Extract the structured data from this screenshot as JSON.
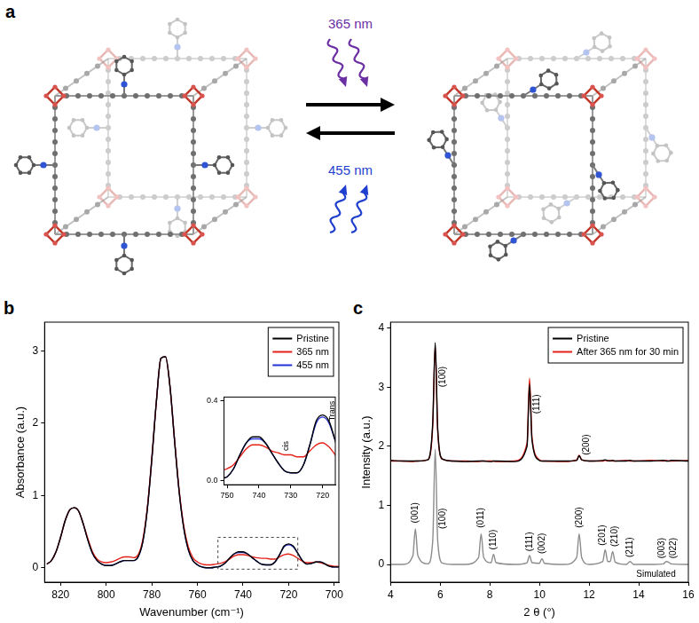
{
  "diagram": {
    "label": "a",
    "arrows": [
      {
        "label": "365 nm",
        "direction": "right"
      },
      {
        "label": "455 nm",
        "direction": "left"
      }
    ]
  },
  "chart_data": [
    {
      "label": "b",
      "type": "line",
      "x_label": "Wavenumber (cm⁻¹)",
      "y_label": "Absorbance (a.u.)",
      "x": [
        826,
        824,
        822,
        820,
        818,
        816,
        814,
        812,
        810,
        808,
        806,
        804,
        802,
        800,
        798,
        796,
        794,
        792,
        790,
        788,
        786,
        784,
        782,
        780,
        778,
        776,
        774,
        772,
        770,
        768,
        766,
        764,
        762,
        760,
        758,
        756,
        754,
        752,
        750,
        748,
        746,
        744,
        742,
        740,
        738,
        736,
        734,
        732,
        730,
        728,
        726,
        724,
        722,
        720,
        718,
        716,
        714,
        712,
        710,
        708,
        706,
        704,
        702,
        700,
        698
      ],
      "series": [
        {
          "name": "Pristine",
          "color": "#000000",
          "values": [
            0.05,
            0.1,
            0.22,
            0.42,
            0.65,
            0.8,
            0.83,
            0.78,
            0.6,
            0.38,
            0.2,
            0.1,
            0.05,
            0.03,
            0.03,
            0.05,
            0.08,
            0.1,
            0.1,
            0.1,
            0.15,
            0.35,
            0.8,
            1.5,
            2.3,
            2.9,
            2.92,
            2.5,
            1.75,
            1.05,
            0.55,
            0.25,
            0.1,
            0.04,
            0.01,
            0.0,
            0.0,
            0.01,
            0.02,
            0.06,
            0.13,
            0.19,
            0.22,
            0.22,
            0.19,
            0.14,
            0.09,
            0.05,
            0.04,
            0.04,
            0.08,
            0.18,
            0.3,
            0.33,
            0.3,
            0.2,
            0.1,
            0.05,
            0.06,
            0.08,
            0.08,
            0.05,
            0.02,
            0.01,
            0.01
          ]
        },
        {
          "name": "365 nm",
          "color": "#e32119",
          "values": [
            0.05,
            0.1,
            0.22,
            0.42,
            0.65,
            0.8,
            0.83,
            0.78,
            0.6,
            0.4,
            0.22,
            0.12,
            0.08,
            0.07,
            0.08,
            0.1,
            0.13,
            0.15,
            0.15,
            0.14,
            0.18,
            0.38,
            0.82,
            1.52,
            2.3,
            2.9,
            2.92,
            2.5,
            1.76,
            1.07,
            0.58,
            0.29,
            0.14,
            0.08,
            0.05,
            0.04,
            0.04,
            0.05,
            0.06,
            0.08,
            0.12,
            0.16,
            0.18,
            0.18,
            0.17,
            0.15,
            0.14,
            0.13,
            0.13,
            0.12,
            0.12,
            0.15,
            0.18,
            0.19,
            0.17,
            0.13,
            0.09,
            0.07,
            0.07,
            0.08,
            0.07,
            0.05,
            0.03,
            0.02,
            0.02
          ]
        },
        {
          "name": "455 nm",
          "color": "#2332d6",
          "values": [
            0.05,
            0.1,
            0.22,
            0.42,
            0.65,
            0.8,
            0.83,
            0.78,
            0.6,
            0.38,
            0.2,
            0.1,
            0.05,
            0.03,
            0.03,
            0.05,
            0.08,
            0.1,
            0.1,
            0.1,
            0.15,
            0.35,
            0.8,
            1.5,
            2.3,
            2.9,
            2.92,
            2.5,
            1.75,
            1.05,
            0.55,
            0.25,
            0.1,
            0.04,
            0.01,
            0.0,
            0.0,
            0.01,
            0.02,
            0.06,
            0.13,
            0.19,
            0.21,
            0.21,
            0.19,
            0.14,
            0.09,
            0.05,
            0.04,
            0.04,
            0.08,
            0.18,
            0.29,
            0.32,
            0.29,
            0.2,
            0.1,
            0.05,
            0.06,
            0.08,
            0.08,
            0.05,
            0.02,
            0.01,
            0.01
          ]
        }
      ],
      "xlim": [
        827,
        698
      ],
      "ylim": [
        -0.2,
        3.4
      ],
      "xticks": [
        820,
        800,
        780,
        760,
        740,
        720,
        700
      ],
      "yticks": [
        0,
        1,
        2,
        3
      ],
      "grid": false,
      "legend": "upper right",
      "inset": {
        "xlim": [
          751,
          716
        ],
        "ylim": [
          -0.02,
          0.42
        ],
        "xticks": [
          750,
          740,
          730,
          720
        ],
        "yticks": [
          {
            "value": 0,
            "label": "0.0"
          },
          {
            "value": 0.4,
            "label": "0.4"
          }
        ],
        "peak_labels": [
          {
            "text": "cis",
            "x": 731.5,
            "y": 0.15
          },
          {
            "text": "Trans",
            "x": 717,
            "y": 0.3
          }
        ]
      }
    },
    {
      "label": "c",
      "type": "line",
      "x_label": "2 θ (°)",
      "y_label": "Intensity (a.u.)",
      "x": [
        4.0,
        4.5,
        4.9,
        5.0,
        5.1,
        5.5,
        5.7,
        5.8,
        5.9,
        6.1,
        6.5,
        7.0,
        7.55,
        7.65,
        7.75,
        8.05,
        8.15,
        8.25,
        9.0,
        9.5,
        9.6,
        9.7,
        10.0,
        10.1,
        10.2,
        11.0,
        11.5,
        11.6,
        11.7,
        12.0,
        12.55,
        12.65,
        12.75,
        12.85,
        12.95,
        13.05,
        13.5,
        13.65,
        13.8,
        14.5,
        15.0,
        15.1,
        15.2,
        15.3,
        16.0
      ],
      "series": [
        {
          "name": "Pristine",
          "color": "#000000",
          "values": [
            1.76,
            1.75,
            1.75,
            1.75,
            1.75,
            1.77,
            2.4,
            3.75,
            2.3,
            1.78,
            1.75,
            1.74,
            1.75,
            1.75,
            1.75,
            1.74,
            1.75,
            1.75,
            1.74,
            2.0,
            3.05,
            2.1,
            1.76,
            1.75,
            1.75,
            1.75,
            1.76,
            1.84,
            1.77,
            1.75,
            1.76,
            1.77,
            1.76,
            1.75,
            1.76,
            1.75,
            1.75,
            1.76,
            1.75,
            1.75,
            1.76,
            1.75,
            1.75,
            1.76,
            1.75
          ]
        },
        {
          "name": "After 365 nm for 30 min",
          "color": "#e32119",
          "values": [
            1.75,
            1.75,
            1.74,
            1.75,
            1.75,
            1.77,
            2.35,
            3.7,
            2.25,
            1.78,
            1.75,
            1.75,
            1.74,
            1.75,
            1.75,
            1.75,
            1.75,
            1.74,
            1.75,
            2.05,
            3.15,
            2.15,
            1.77,
            1.75,
            1.75,
            1.74,
            1.77,
            1.85,
            1.77,
            1.75,
            1.75,
            1.76,
            1.75,
            1.76,
            1.75,
            1.75,
            1.76,
            1.75,
            1.75,
            1.76,
            1.75,
            1.76,
            1.75,
            1.75,
            1.76
          ]
        },
        {
          "color": "#8c8c8c",
          "values": [
            0.0,
            0.0,
            0.15,
            0.6,
            0.15,
            0.01,
            0.4,
            1.95,
            0.4,
            0.02,
            0.0,
            0.0,
            0.12,
            0.52,
            0.12,
            0.03,
            0.17,
            0.03,
            0.0,
            0.03,
            0.15,
            0.03,
            0.02,
            0.1,
            0.02,
            0.0,
            0.12,
            0.52,
            0.12,
            0.0,
            0.05,
            0.25,
            0.05,
            0.05,
            0.22,
            0.04,
            0.0,
            0.05,
            0.0,
            0.0,
            0.01,
            0.05,
            0.04,
            0.01,
            0.0
          ]
        }
      ],
      "xlim": [
        4,
        16
      ],
      "ylim": [
        -0.3,
        4.1
      ],
      "xticks": [
        4,
        6,
        8,
        10,
        12,
        14,
        16
      ],
      "yticks": [
        0,
        1,
        2,
        3,
        4
      ],
      "grid": false,
      "legend": "upper right",
      "peak_labels": [
        {
          "text": "(100)",
          "x": 6.1,
          "y": 3.0
        },
        {
          "text": "(111)",
          "x": 9.9,
          "y": 2.55
        },
        {
          "text": "(200)",
          "x": 11.9,
          "y": 1.85
        },
        {
          "text": "(001)",
          "x": 5.0,
          "y": 0.7
        },
        {
          "text": "(100)",
          "x": 6.1,
          "y": 0.6
        },
        {
          "text": "(011)",
          "x": 7.65,
          "y": 0.62
        },
        {
          "text": "(110)",
          "x": 8.15,
          "y": 0.25
        },
        {
          "text": "(111)",
          "x": 9.6,
          "y": 0.22
        },
        {
          "text": "(002)",
          "x": 10.1,
          "y": 0.18
        },
        {
          "text": "(200)",
          "x": 11.6,
          "y": 0.62
        },
        {
          "text": "(201)",
          "x": 12.55,
          "y": 0.32
        },
        {
          "text": "(210)",
          "x": 13.05,
          "y": 0.3
        },
        {
          "text": "(211)",
          "x": 13.65,
          "y": 0.12
        },
        {
          "text": "(003)",
          "x": 14.95,
          "y": 0.1
        },
        {
          "text": "(022)",
          "x": 15.4,
          "y": 0.1
        }
      ],
      "annotations": [
        {
          "text": "Simulated",
          "x": 13.9,
          "y": -0.17
        }
      ]
    }
  ]
}
